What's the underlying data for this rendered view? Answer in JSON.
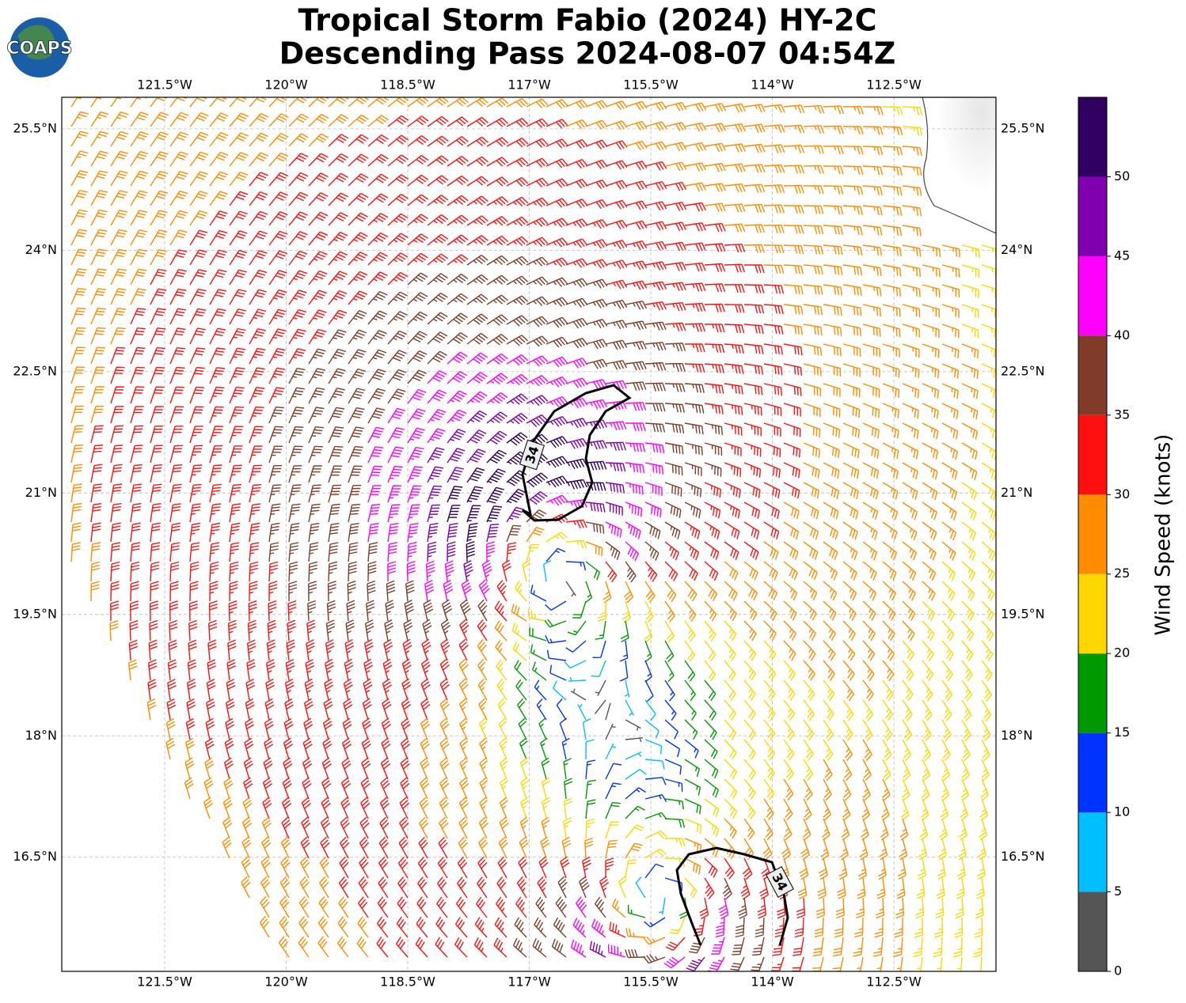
{
  "header": {
    "title_lines": [
      "Tropical Storm Fabio (2024) HY-2C",
      "Descending Pass 2024-08-07 04:54Z"
    ],
    "logo": "COAPS"
  },
  "map": {
    "xlim": [
      -122.77,
      -111.24
    ],
    "ylim": [
      15.09,
      25.89
    ],
    "xticks": [
      {
        "value": -121.5,
        "label": "121.5°W"
      },
      {
        "value": -120,
        "label": "120°W"
      },
      {
        "value": -118.5,
        "label": "118.5°W"
      },
      {
        "value": -117,
        "label": "117°W"
      },
      {
        "value": -115.5,
        "label": "115.5°W"
      },
      {
        "value": -114,
        "label": "114°W"
      },
      {
        "value": -112.5,
        "label": "112.5°W"
      }
    ],
    "yticks": [
      {
        "value": 25.5,
        "label": "25.5°N"
      },
      {
        "value": 24,
        "label": "24°N"
      },
      {
        "value": 22.5,
        "label": "22.5°N"
      },
      {
        "value": 21,
        "label": "21°N"
      },
      {
        "value": 19.5,
        "label": "19.5°N"
      },
      {
        "value": 18,
        "label": "18°N"
      },
      {
        "value": 16.5,
        "label": "16.5°N"
      }
    ],
    "grid": true,
    "contour_labels": [
      "34",
      "34"
    ]
  },
  "colorbar": {
    "label": "Wind Speed (knots)",
    "lim": [
      0,
      55
    ],
    "ticks": [
      0,
      5,
      10,
      15,
      20,
      25,
      30,
      35,
      40,
      45,
      50
    ],
    "colors": [
      "#555555",
      "#00bfff",
      "#0033ff",
      "#009900",
      "#ffd700",
      "#ff8c00",
      "#ff1010",
      "#803c28",
      "#ff00ff",
      "#8000b0",
      "#300060"
    ]
  }
}
